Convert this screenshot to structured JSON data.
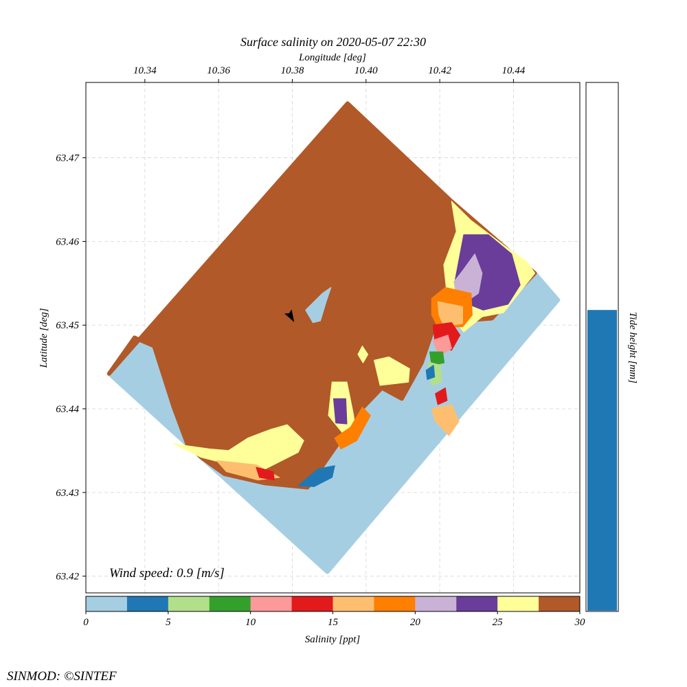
{
  "chart_data": {
    "type": "heatmap",
    "title": "Surface salinity on 2020-05-07 22:30",
    "xlabel": "Longitude [deg]",
    "ylabel": "Latitude [deg]",
    "xlim": [
      10.324,
      10.458
    ],
    "ylim": [
      63.418,
      63.479
    ],
    "x_ticks": [
      "10.34",
      "10.36",
      "10.38",
      "10.40",
      "10.42",
      "10.44"
    ],
    "x_tick_values": [
      10.34,
      10.36,
      10.38,
      10.4,
      10.42,
      10.44
    ],
    "y_ticks": [
      "63.42",
      "63.43",
      "63.44",
      "63.45",
      "63.46",
      "63.47"
    ],
    "y_tick_values": [
      63.42,
      63.43,
      63.44,
      63.45,
      63.46,
      63.47
    ],
    "grid": true,
    "domain_corners": [
      {
        "lon": 10.395,
        "lat": 63.4765
      },
      {
        "lon": 10.4521,
        "lat": 63.453
      },
      {
        "lon": 10.3895,
        "lat": 63.4205
      },
      {
        "lon": 10.3303,
        "lat": 63.4442
      }
    ],
    "regions": [
      {
        "salinity": 1.5,
        "color": "#a6cee3",
        "polygon": [
          [
            10.3303,
            63.4442
          ],
          [
            10.3372,
            63.4485
          ],
          [
            10.3425,
            63.4475
          ],
          [
            10.3478,
            63.4402
          ],
          [
            10.3515,
            63.4358
          ],
          [
            10.3553,
            63.4342
          ],
          [
            10.3616,
            63.4322
          ],
          [
            10.3726,
            63.4311
          ],
          [
            10.3841,
            63.4306
          ],
          [
            10.3934,
            63.4365
          ],
          [
            10.3993,
            63.4402
          ],
          [
            10.4043,
            63.4425
          ],
          [
            10.4097,
            63.4412
          ],
          [
            10.4151,
            63.4455
          ],
          [
            10.4188,
            63.4503
          ],
          [
            10.4341,
            63.4508
          ],
          [
            10.4458,
            63.4562
          ],
          [
            10.4521,
            63.453
          ],
          [
            10.3895,
            63.4205
          ]
        ]
      },
      {
        "salinity": 28.5,
        "color": "#b15928",
        "polygon": [
          [
            10.3303,
            63.4442
          ],
          [
            10.3372,
            63.4485
          ],
          [
            10.3425,
            63.4475
          ],
          [
            10.3478,
            63.4402
          ],
          [
            10.3515,
            63.4358
          ],
          [
            10.3553,
            63.4342
          ],
          [
            10.3616,
            63.4322
          ],
          [
            10.3726,
            63.4311
          ],
          [
            10.3841,
            63.4306
          ],
          [
            10.3934,
            63.4365
          ],
          [
            10.3993,
            63.4402
          ],
          [
            10.4043,
            63.4425
          ],
          [
            10.4097,
            63.4412
          ],
          [
            10.4151,
            63.4455
          ],
          [
            10.4188,
            63.4503
          ],
          [
            10.4341,
            63.4508
          ],
          [
            10.4458,
            63.4562
          ],
          [
            10.4232,
            63.4648
          ],
          [
            10.395,
            63.4765
          ]
        ]
      },
      {
        "salinity": 26.0,
        "color": "#ffff99",
        "polygon": [
          [
            10.4232,
            63.4648
          ],
          [
            10.4285,
            63.4625
          ],
          [
            10.4375,
            63.4595
          ],
          [
            10.4438,
            63.4575
          ],
          [
            10.4458,
            63.4562
          ],
          [
            10.4373,
            63.4515
          ],
          [
            10.4315,
            63.451
          ],
          [
            10.4265,
            63.4492
          ],
          [
            10.4225,
            63.4515
          ],
          [
            10.4211,
            63.4572
          ],
          [
            10.4245,
            63.4612
          ]
        ]
      },
      {
        "salinity": 23.5,
        "color": "#6a3d9a",
        "polygon": [
          [
            10.4265,
            63.4608
          ],
          [
            10.4332,
            63.4608
          ],
          [
            10.4395,
            63.4585
          ],
          [
            10.4418,
            63.4548
          ],
          [
            10.4385,
            63.4525
          ],
          [
            10.4318,
            63.4518
          ],
          [
            10.4272,
            63.4526
          ],
          [
            10.4241,
            63.4552
          ]
        ]
      },
      {
        "salinity": 21.0,
        "color": "#cab2d6",
        "polygon": [
          [
            10.4262,
            63.4565
          ],
          [
            10.4295,
            63.4585
          ],
          [
            10.4315,
            63.4562
          ],
          [
            10.4305,
            63.4538
          ],
          [
            10.4285,
            63.4532
          ],
          [
            10.4245,
            63.4535
          ],
          [
            10.4239,
            63.4552
          ]
        ]
      },
      {
        "salinity": 18.5,
        "color": "#ff7f00",
        "polygon": [
          [
            10.4178,
            63.4532
          ],
          [
            10.4215,
            63.4545
          ],
          [
            10.4285,
            63.4538
          ],
          [
            10.4288,
            63.4512
          ],
          [
            10.4262,
            63.4498
          ],
          [
            10.4195,
            63.4498
          ],
          [
            10.4178,
            63.4512
          ]
        ]
      },
      {
        "salinity": 16.0,
        "color": "#fdbf6f",
        "polygon": [
          [
            10.4195,
            63.4528
          ],
          [
            10.4262,
            63.4522
          ],
          [
            10.4262,
            63.4502
          ],
          [
            10.4212,
            63.4498
          ],
          [
            10.4198,
            63.4512
          ]
        ]
      },
      {
        "salinity": 13.5,
        "color": "#e31a1c",
        "polygon": [
          [
            10.4182,
            63.45
          ],
          [
            10.4232,
            63.4503
          ],
          [
            10.4255,
            63.4488
          ],
          [
            10.4232,
            63.447
          ],
          [
            10.4188,
            63.4475
          ]
        ]
      },
      {
        "salinity": 11.0,
        "color": "#fb9a99",
        "polygon": [
          [
            10.4182,
            63.4482
          ],
          [
            10.4222,
            63.4488
          ],
          [
            10.4232,
            63.4472
          ],
          [
            10.4198,
            63.4463
          ]
        ]
      },
      {
        "salinity": 8.5,
        "color": "#33a02c",
        "polygon": [
          [
            10.4173,
            63.4468
          ],
          [
            10.4208,
            63.4468
          ],
          [
            10.4212,
            63.4455
          ],
          [
            10.4178,
            63.4452
          ]
        ]
      },
      {
        "salinity": 6.0,
        "color": "#b2df8a",
        "polygon": [
          [
            10.4168,
            63.4456
          ],
          [
            10.4202,
            63.4452
          ],
          [
            10.4205,
            63.4432
          ],
          [
            10.4178,
            63.4428
          ]
        ]
      },
      {
        "salinity": 3.5,
        "color": "#1f78b4",
        "polygon": [
          [
            10.4163,
            63.4446
          ],
          [
            10.4183,
            63.4452
          ],
          [
            10.4186,
            63.4438
          ],
          [
            10.4166,
            63.4435
          ]
        ]
      },
      {
        "salinity": 13.5,
        "color": "#e31a1c",
        "polygon": [
          [
            10.4188,
            63.4418
          ],
          [
            10.4215,
            63.4425
          ],
          [
            10.422,
            63.441
          ],
          [
            10.4195,
            63.4405
          ]
        ]
      },
      {
        "salinity": 16.0,
        "color": "#fdbf6f",
        "polygon": [
          [
            10.4178,
            63.44
          ],
          [
            10.4232,
            63.4405
          ],
          [
            10.4252,
            63.4385
          ],
          [
            10.4225,
            63.4368
          ],
          [
            10.4188,
            63.4385
          ]
        ]
      },
      {
        "salinity": 1.5,
        "color": "#a6cee3",
        "polygon": [
          [
            10.3836,
            63.4518
          ],
          [
            10.3882,
            63.4538
          ],
          [
            10.3905,
            63.4545
          ],
          [
            10.3892,
            63.4528
          ],
          [
            10.3876,
            63.4505
          ],
          [
            10.3856,
            63.4503
          ]
        ]
      },
      {
        "salinity": 26.0,
        "color": "#ffff99",
        "polygon": [
          [
            10.3908,
            63.4432
          ],
          [
            10.3948,
            63.4432
          ],
          [
            10.3965,
            63.4395
          ],
          [
            10.3975,
            63.4368
          ],
          [
            10.3942,
            63.4368
          ],
          [
            10.3898,
            63.4392
          ]
        ]
      },
      {
        "salinity": 23.5,
        "color": "#6a3d9a",
        "polygon": [
          [
            10.3912,
            63.4412
          ],
          [
            10.3945,
            63.4412
          ],
          [
            10.3948,
            63.4382
          ],
          [
            10.3918,
            63.4383
          ]
        ]
      },
      {
        "salinity": 26.0,
        "color": "#ffff99",
        "polygon": [
          [
            10.3478,
            63.4358
          ],
          [
            10.3575,
            63.4352
          ],
          [
            10.3627,
            63.435
          ],
          [
            10.3679,
            63.4365
          ],
          [
            10.3739,
            63.4375
          ],
          [
            10.3786,
            63.4381
          ],
          [
            10.3831,
            63.4362
          ],
          [
            10.3816,
            63.4348
          ],
          [
            10.3726,
            63.4328
          ],
          [
            10.3616,
            63.4335
          ],
          [
            10.3553,
            63.4342
          ]
        ]
      },
      {
        "salinity": 16.0,
        "color": "#fdbf6f",
        "polygon": [
          [
            10.3595,
            63.4338
          ],
          [
            10.3702,
            63.4333
          ],
          [
            10.3765,
            63.4318
          ],
          [
            10.3706,
            63.4315
          ],
          [
            10.3621,
            63.4325
          ]
        ]
      },
      {
        "salinity": 13.5,
        "color": "#e31a1c",
        "polygon": [
          [
            10.3702,
            63.433
          ],
          [
            10.3748,
            63.4325
          ],
          [
            10.3751,
            63.4315
          ],
          [
            10.3711,
            63.4318
          ]
        ]
      },
      {
        "salinity": 3.5,
        "color": "#1f78b4",
        "polygon": [
          [
            10.3816,
            63.4308
          ],
          [
            10.3869,
            63.4328
          ],
          [
            10.3915,
            63.4332
          ],
          [
            10.3908,
            63.4318
          ],
          [
            10.3859,
            63.4307
          ]
        ]
      },
      {
        "salinity": 18.5,
        "color": "#ff7f00",
        "polygon": [
          [
            10.3915,
            63.4365
          ],
          [
            10.3958,
            63.4378
          ],
          [
            10.399,
            63.4402
          ],
          [
            10.4012,
            63.4392
          ],
          [
            10.3975,
            63.4362
          ],
          [
            10.3932,
            63.4352
          ]
        ]
      },
      {
        "salinity": 26.0,
        "color": "#ffff99",
        "polygon": [
          [
            10.4022,
            63.4458
          ],
          [
            10.4062,
            63.4462
          ],
          [
            10.4118,
            63.4448
          ],
          [
            10.4115,
            63.4432
          ],
          [
            10.4038,
            63.4428
          ]
        ]
      },
      {
        "salinity": 26.0,
        "color": "#ffff99",
        "polygon": [
          [
            10.3978,
            63.4465
          ],
          [
            10.399,
            63.4475
          ],
          [
            10.4005,
            63.4465
          ],
          [
            10.3992,
            63.4455
          ]
        ]
      }
    ],
    "colorbar": {
      "label": "Salinity [ppt]",
      "vmin": 0,
      "vmax": 30,
      "tick_values": [
        0,
        5,
        10,
        15,
        20,
        25,
        30
      ],
      "tick_labels": [
        "0",
        "5",
        "10",
        "15",
        "20",
        "25",
        "30"
      ],
      "colors": [
        "#a6cee3",
        "#1f78b4",
        "#b2df8a",
        "#33a02c",
        "#fb9a99",
        "#e31a1c",
        "#fdbf6f",
        "#ff7f00",
        "#cab2d6",
        "#6a3d9a",
        "#ffff99",
        "#b15928"
      ]
    },
    "tide": {
      "label": "Tide height [mm]",
      "level_fraction": 0.57,
      "color": "#1f78b4"
    },
    "wind": {
      "text": "Wind speed: 0.9 [m/s]",
      "arrow_lon": 10.3794,
      "arrow_lat": 63.4512,
      "direction_deg": 150
    }
  },
  "footer": {
    "credit": "SINMOD: ©SINTEF"
  }
}
